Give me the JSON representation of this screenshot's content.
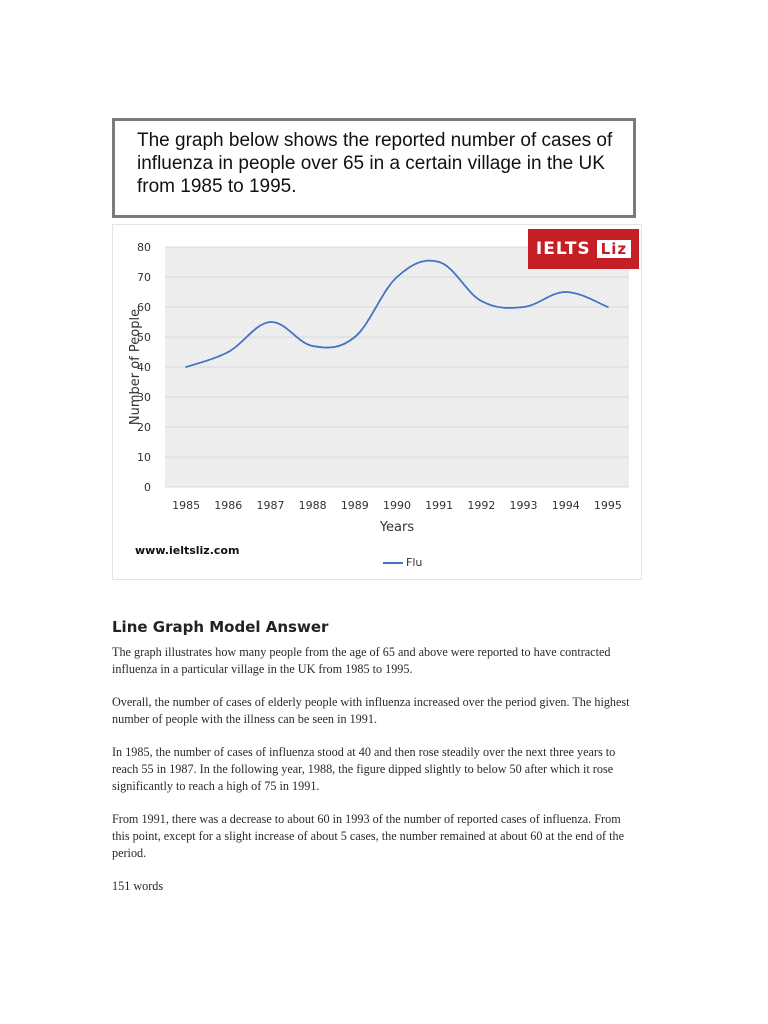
{
  "prompt": {
    "text": "The graph below shows the reported number of cases of influenza in people over 65 in a certain village in the UK from 1985 to 1995."
  },
  "logo": {
    "text": "IELTS",
    "badge": "Liz"
  },
  "site_url": "www.ieltsliz.com",
  "chart_data": {
    "type": "line",
    "title": "",
    "xlabel": "Years",
    "ylabel": "Number of People",
    "categories": [
      "1985",
      "1986",
      "1987",
      "1988",
      "1989",
      "1990",
      "1991",
      "1992",
      "1993",
      "1994",
      "1995"
    ],
    "series": [
      {
        "name": "Flu",
        "values": [
          40,
          45,
          55,
          47,
          50,
          70,
          75,
          62,
          60,
          65,
          60
        ],
        "color": "#4472c4"
      }
    ],
    "ylim": [
      0,
      80
    ],
    "yticks": [
      "0",
      "10",
      "20",
      "30",
      "40",
      "50",
      "60",
      "70",
      "80"
    ],
    "grid": true,
    "legend": "bottom"
  },
  "answer": {
    "heading": "Line Graph Model Answer",
    "paragraphs": [
      "The graph illustrates how many people from the age of 65 and above were reported to have contracted influenza in a particular village in the UK from 1985 to 1995.",
      "Overall, the number of cases of elderly people with influenza increased over the period given. The highest number of people with the illness can be seen in 1991.",
      "In 1985, the number of cases of influenza stood at 40 and then rose steadily over the next three years to reach 55 in 1987. In the following year, 1988, the figure dipped slightly to below 50 after which it rose significantly to reach a high of 75 in 1991.",
      "From 1991, there was a decrease to about 60 in 1993 of the number of reported cases of influenza. From this point, except for a slight increase of about 5 cases, the number remained at about 60 at the end of the period."
    ],
    "word_count": "151 words"
  }
}
